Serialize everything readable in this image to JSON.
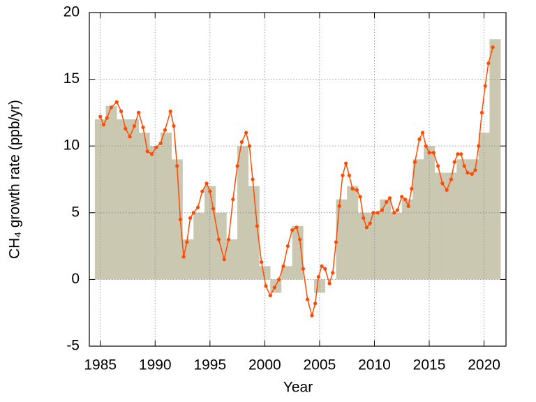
{
  "chart_data": {
    "type": "bar",
    "xlabel": "Year",
    "ylabel": "CH₄ growth rate (ppb/yr)",
    "x": [
      1985,
      1986,
      1987,
      1988,
      1989,
      1990,
      1991,
      1992,
      1993,
      1994,
      1995,
      1996,
      1997,
      1998,
      1999,
      2000,
      2001,
      2002,
      2003,
      2004,
      2005,
      2006,
      2007,
      2008,
      2009,
      2010,
      2011,
      2012,
      2013,
      2014,
      2015,
      2016,
      2017,
      2018,
      2019,
      2020,
      2021
    ],
    "values": [
      12,
      13,
      12,
      12,
      11,
      10,
      11,
      9,
      3,
      5,
      7,
      5,
      3,
      10,
      7,
      1,
      -1,
      1,
      4,
      0,
      -1,
      0,
      6,
      7,
      5,
      5,
      6,
      5,
      6,
      9,
      10,
      8,
      8,
      9,
      9,
      11,
      18
    ],
    "color": "#cbc8b2",
    "line": {
      "color": "#ff4a00",
      "x": [
        1985,
        1985.3,
        1985.6,
        1986.0,
        1986.5,
        1986.9,
        1987.3,
        1987.7,
        1988.1,
        1988.5,
        1988.9,
        1989.3,
        1989.7,
        1990.1,
        1990.5,
        1990.9,
        1991.4,
        1991.7,
        1992.0,
        1992.3,
        1992.6,
        1992.9,
        1993.2,
        1993.5,
        1993.9,
        1994.3,
        1994.7,
        1995.0,
        1995.3,
        1995.8,
        1996.3,
        1996.7,
        1997.1,
        1997.5,
        1997.9,
        1998.3,
        1998.6,
        1998.9,
        1999.3,
        1999.7,
        2000.1,
        2000.5,
        2000.9,
        2001.3,
        2001.7,
        2002.1,
        2002.5,
        2002.9,
        2003.2,
        2003.5,
        2003.9,
        2004.3,
        2004.6,
        2004.9,
        2005.2,
        2005.5,
        2005.9,
        2006.2,
        2006.5,
        2006.8,
        2007.1,
        2007.4,
        2007.7,
        2008.0,
        2008.4,
        2008.7,
        2009.0,
        2009.3,
        2009.6,
        2009.9,
        2010.3,
        2010.7,
        2011.1,
        2011.4,
        2011.8,
        2012.1,
        2012.5,
        2012.8,
        2013.1,
        2013.4,
        2013.7,
        2014.1,
        2014.4,
        2014.7,
        2015.0,
        2015.4,
        2015.8,
        2016.2,
        2016.6,
        2017.0,
        2017.3,
        2017.6,
        2017.9,
        2018.2,
        2018.5,
        2018.9,
        2019.2,
        2019.5,
        2019.8,
        2020.1,
        2020.4,
        2020.8
      ],
      "values": [
        12.2,
        11.6,
        12.1,
        12.9,
        13.3,
        12.6,
        11.3,
        10.7,
        11.5,
        12.5,
        11.4,
        9.6,
        9.4,
        9.9,
        10.2,
        11.2,
        12.6,
        11.5,
        8.5,
        4.5,
        1.7,
        2.8,
        4.6,
        5.0,
        5.4,
        6.6,
        7.2,
        6.6,
        5.3,
        3.0,
        1.5,
        3.0,
        6.0,
        8.5,
        10.3,
        11.0,
        10.0,
        7.5,
        4.0,
        1.3,
        -0.5,
        -1.2,
        -0.6,
        0.0,
        1.0,
        2.5,
        3.7,
        3.9,
        3.0,
        0.8,
        -1.5,
        -2.7,
        -1.8,
        0.2,
        1.0,
        0.8,
        -0.3,
        0.5,
        2.8,
        5.5,
        7.8,
        8.7,
        7.8,
        6.8,
        6.7,
        6.2,
        4.6,
        3.9,
        4.2,
        5.0,
        5.0,
        5.2,
        5.8,
        6.1,
        5.0,
        5.2,
        6.2,
        6.0,
        5.5,
        6.8,
        8.8,
        10.5,
        11.0,
        10.0,
        9.5,
        9.5,
        8.5,
        7.2,
        6.7,
        7.5,
        8.8,
        9.4,
        9.4,
        8.5,
        8.0,
        7.9,
        8.2,
        10.0,
        12.5,
        14.5,
        16.2,
        17.4
      ]
    },
    "xlim": [
      1984,
      2022
    ],
    "xticks": [
      1985,
      1990,
      1995,
      2000,
      2005,
      2010,
      2015,
      2020
    ],
    "ylim": [
      -5,
      20
    ],
    "yticks": [
      -5,
      0,
      5,
      10,
      15,
      20
    ],
    "grid": true
  }
}
